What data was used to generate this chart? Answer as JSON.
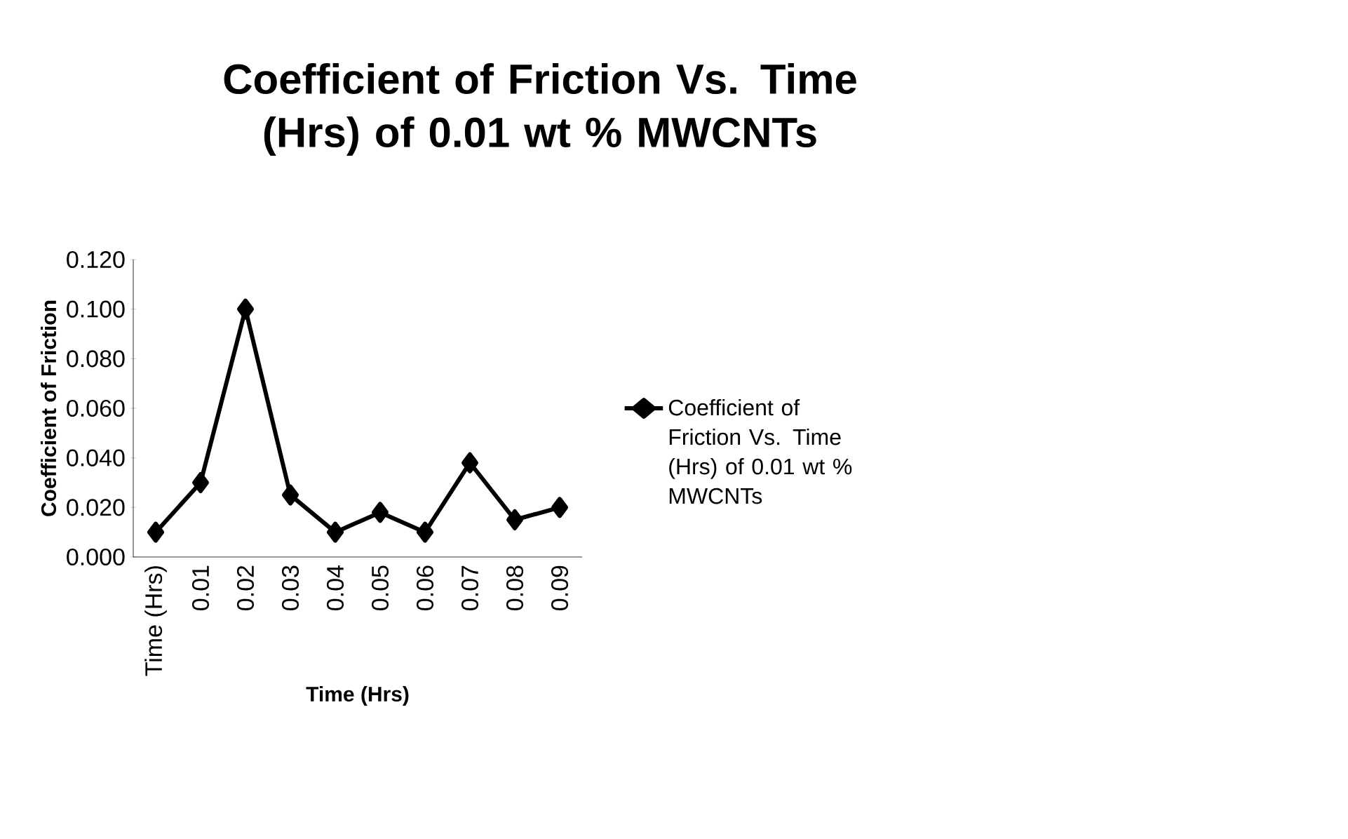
{
  "chart_data": {
    "type": "line",
    "title": "Coefficient of Friction Vs. Time (Hrs) of 0.01 wt % MWCNTs",
    "xlabel": "Time (Hrs)",
    "ylabel": "Coefficient of Friction",
    "categories": [
      "Time (Hrs)",
      "0.01",
      "0.02",
      "0.03",
      "0.04",
      "0.05",
      "0.06",
      "0.07",
      "0.08",
      "0.09"
    ],
    "series": [
      {
        "name": "Coefficient of Friction Vs. Time (Hrs) of 0.01 wt % MWCNTs",
        "color": "#000000",
        "values": [
          0.01,
          0.03,
          0.1,
          0.025,
          0.01,
          0.018,
          0.01,
          0.038,
          0.015,
          0.02
        ]
      }
    ],
    "ylim": [
      0,
      0.12
    ],
    "yticks": [
      {
        "value": 0,
        "label": "0.000"
      },
      {
        "value": 0.02,
        "label": "0.020"
      },
      {
        "value": 0.04,
        "label": "0.040"
      },
      {
        "value": 0.06,
        "label": "0.060"
      },
      {
        "value": 0.08,
        "label": "0.080"
      },
      {
        "value": 0.1,
        "label": "0.100"
      },
      {
        "value": 0.12,
        "label": "0.120"
      }
    ],
    "legend": "right",
    "marker": "diamond",
    "line_style": "solid",
    "grid": false
  }
}
